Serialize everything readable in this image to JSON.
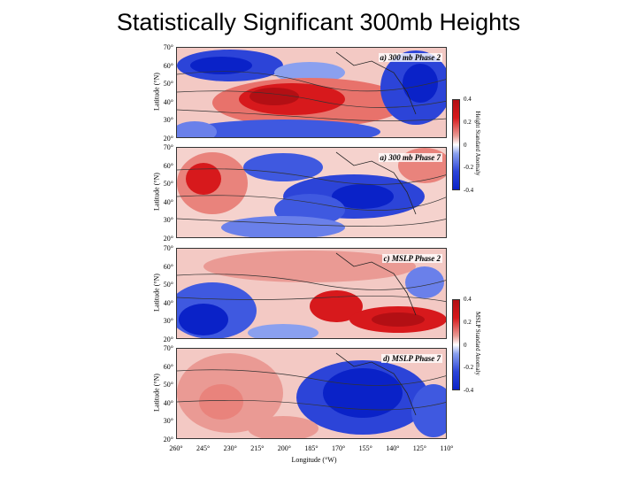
{
  "title": "Statistically Significant 300mb Heights",
  "panels": [
    {
      "label": "a) 300 mb Phase 2"
    },
    {
      "label": "a) 300 mb Phase 7"
    },
    {
      "label": "c) MSLP Phase 2"
    },
    {
      "label": "d) MSLP Phase 7"
    }
  ],
  "axes": {
    "ylabel": "Latitude (°N)",
    "yticks": [
      "70°",
      "60°",
      "50°",
      "40°",
      "30°",
      "20°"
    ],
    "xlabel": "Longitude (°W)",
    "xticks": [
      "260°",
      "245°",
      "230°",
      "215°",
      "200°",
      "185°",
      "170°",
      "155°",
      "140°",
      "125°",
      "110°"
    ]
  },
  "colorbars": [
    {
      "label": "Height Standard Anomaly",
      "ticks": [
        "0.4",
        "0.2",
        "0",
        "-0.2",
        "-0.4"
      ]
    },
    {
      "label": "MSLP Standard Anomaly",
      "ticks": [
        "0.4",
        "0.2",
        "0",
        "-0.2",
        "-0.4"
      ]
    }
  ],
  "colors": {
    "positive": "#d7191c",
    "negative": "#1a2fd6",
    "neutral": "#ffffff"
  }
}
